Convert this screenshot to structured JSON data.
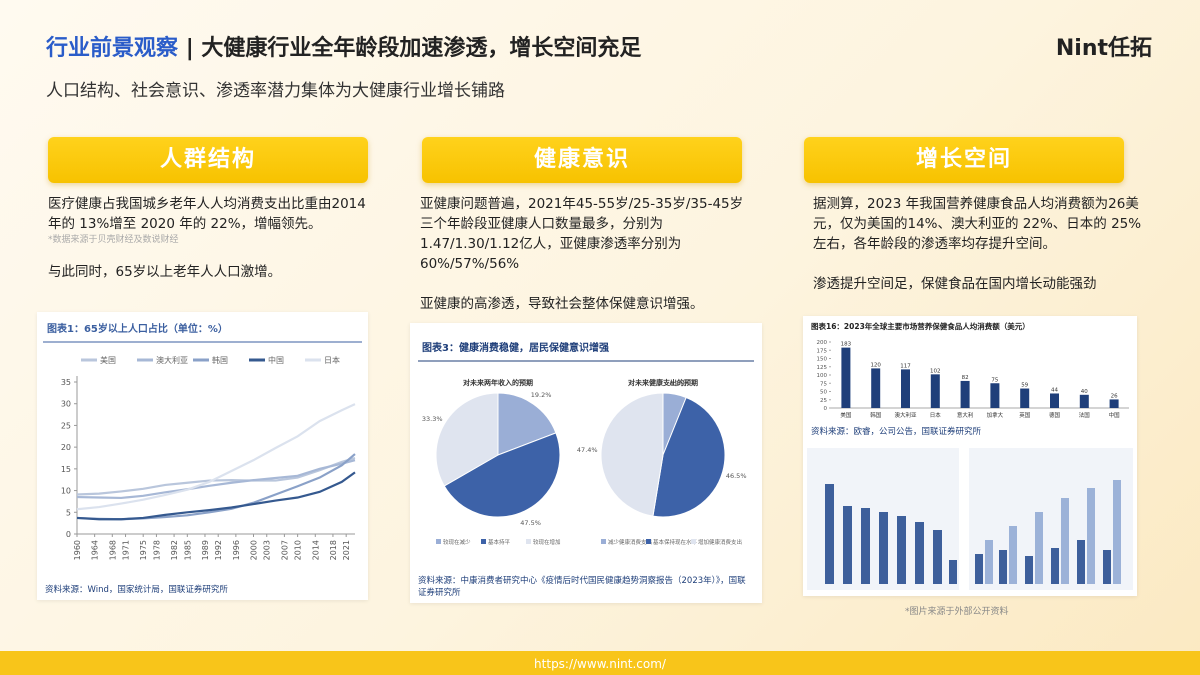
{
  "header": {
    "title_prefix": "行业前景观察",
    "separator": "|",
    "title": "大健康行业全年龄段加速渗透，增长空间充足",
    "subtitle": "人口结构、社会意识、渗透率潜力集体为大健康行业增长铺路",
    "brand": "Nint任拓"
  },
  "columns": [
    {
      "heading": "人群结构",
      "paragraphs": [
        "医疗健康占我国城乡老年人人均消费支出比重由2014 年的 13%增至 2020 年的 22%，增幅领先。",
        "与此同时，65岁以上老年人人口激增。"
      ],
      "note": "*数据来源于贝壳财经及数说财经"
    },
    {
      "heading": "健康意识",
      "paragraphs": [
        "亚健康问题普遍，2021年45-55岁/25-35岁/35-45岁三个年龄段亚健康人口数量最多，分别为1.47/1.30/1.12亿人，亚健康渗透率分别为60%/57%/56%",
        "亚健康的高渗透，导致社会整体保健意识增强。"
      ]
    },
    {
      "heading": "增长空间",
      "paragraphs": [
        "据测算，2023 年我国营养健康食品人均消费额为26美元，仅为美国的14%、澳大利亚的 22%、日本的 25%左右，各年龄段的渗透率均存提升空间。",
        "渗透提升空间足，保健食品在国内增长动能强劲"
      ]
    }
  ],
  "charts": [
    {
      "type": "line",
      "title": "图表1：65岁以上人口占比（单位：%）",
      "x": [
        1960,
        1965,
        1970,
        1975,
        1980,
        1985,
        1990,
        1995,
        2000,
        2005,
        2010,
        2015,
        2020,
        2023
      ],
      "xlim": [
        1960,
        2023
      ],
      "xticks": [
        1960,
        1964,
        1968,
        1971,
        1975,
        1978,
        1982,
        1985,
        1989,
        1992,
        1996,
        2000,
        2003,
        2007,
        2010,
        2014,
        2018,
        2021
      ],
      "ylim": [
        0,
        35
      ],
      "yticks": [
        0,
        5,
        10,
        15,
        20,
        25,
        30,
        35
      ],
      "series": [
        {
          "name": "美国",
          "color": "#b9c6dc",
          "values": [
            9.1,
            9.3,
            9.8,
            10.4,
            11.3,
            11.8,
            12.3,
            12.4,
            12.3,
            12.3,
            13,
            14.7,
            16.6,
            17.5
          ]
        },
        {
          "name": "澳大利亚",
          "color": "#a7b8d6",
          "values": [
            8.5,
            8.4,
            8.3,
            8.8,
            9.6,
            10.3,
            11.1,
            11.8,
            12.4,
            12.9,
            13.4,
            15,
            16.2,
            17
          ]
        },
        {
          "name": "韩国",
          "color": "#8aa1c8",
          "values": [
            3.7,
            3.5,
            3.4,
            3.6,
            3.9,
            4.3,
            5,
            5.8,
            7.2,
            9.1,
            11,
            13,
            15.8,
            18.4
          ]
        },
        {
          "name": "中国",
          "color": "#35598f",
          "values": [
            3.7,
            3.4,
            3.4,
            3.7,
            4.4,
            5,
            5.5,
            6.1,
            6.9,
            7.7,
            8.4,
            9.7,
            12,
            14.2
          ]
        },
        {
          "name": "日本",
          "color": "#dbe2ee",
          "values": [
            5.7,
            6.2,
            7,
            7.9,
            9,
            10.2,
            12,
            14.5,
            17,
            19.8,
            22.5,
            26,
            28.5,
            29.9
          ]
        }
      ],
      "source": "资料来源：Wind，国家统计局，国联证券研究所"
    },
    {
      "type": "pie",
      "title": "图表3：健康消费稳健，居民保健意识增强",
      "colors": [
        "#9aaed6",
        "#3d62a8",
        "#dfe4ef"
      ],
      "pies": [
        {
          "title": "对未来两年收入的预期",
          "values": [
            19.2,
            47.5,
            33.3
          ],
          "value_labels": [
            "19.2%",
            "47.5%",
            "33.3%"
          ],
          "labels": [
            "较现在减少",
            "基本持平",
            "较现在增加"
          ]
        },
        {
          "title": "对未来健康支出的预期",
          "values": [
            6.1,
            46.5,
            47.4
          ],
          "value_labels": [
            "6.1%",
            "46.5%",
            "47.4%"
          ],
          "labels": [
            "减少健康消费支出",
            "基本保持现在水平",
            "增加健康消费支出"
          ]
        }
      ],
      "source": "资料来源：中康消费者研究中心《疫情后时代国民健康趋势洞察报告（2023年）》，国联证券研究所"
    },
    {
      "type": "bar",
      "title": "图表16：2023年全球主要市场营养保健食品人均消费额（美元）",
      "categories": [
        "美国",
        "韩国",
        "澳大利亚",
        "日本",
        "意大利",
        "加拿大",
        "英国",
        "德国",
        "法国",
        "中国"
      ],
      "values": [
        183,
        120,
        117,
        102,
        82,
        75,
        59,
        44,
        40,
        26
      ],
      "color": "#1f3f7a",
      "ylim": [
        0,
        200
      ],
      "yticks": [
        0,
        25,
        50,
        75,
        100,
        125,
        150,
        175,
        200
      ],
      "source": "资料来源：欧睿，公司公告，国联证券研究所"
    }
  ],
  "footer": {
    "url": "https://www.nint.com/",
    "image_note": "*图片来源于外部公开资料"
  }
}
